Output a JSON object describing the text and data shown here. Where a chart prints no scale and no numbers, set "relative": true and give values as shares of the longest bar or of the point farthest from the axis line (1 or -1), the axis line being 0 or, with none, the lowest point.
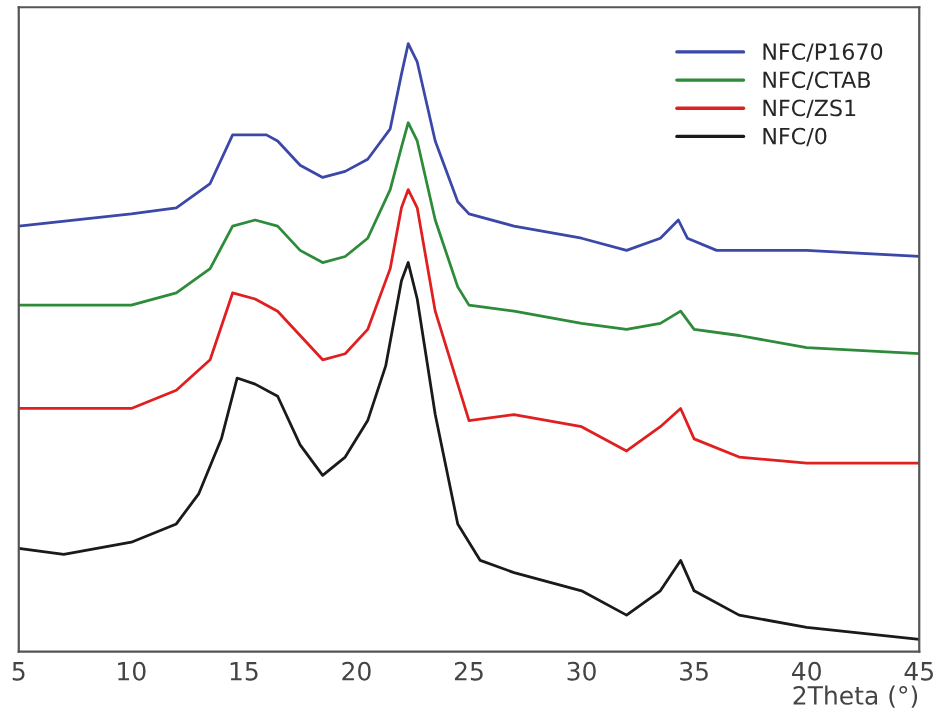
{
  "chart_data": {
    "type": "line",
    "relative": true,
    "xlabel": "2Theta (°)",
    "xlim": [
      5,
      45
    ],
    "xticks": [
      5,
      10,
      15,
      20,
      25,
      30,
      35,
      40,
      45
    ],
    "tick_labels": "x",
    "legend": "top right",
    "grid": false,
    "marker": "none",
    "line_style": "solid",
    "series": [
      {
        "name": "NFC/P1670",
        "color": "#3b48a8",
        "x": [
          5,
          10,
          12,
          13.5,
          14.5,
          15,
          16,
          16.5,
          17.5,
          18.5,
          19.5,
          20.5,
          21.5,
          22,
          22.3,
          22.7,
          23.5,
          24.5,
          25,
          27,
          30,
          32,
          33.5,
          34.3,
          34.7,
          36,
          40,
          45
        ],
        "values": [
          0.7,
          0.72,
          0.73,
          0.77,
          0.85,
          0.85,
          0.85,
          0.84,
          0.8,
          0.78,
          0.79,
          0.81,
          0.86,
          0.95,
          1.0,
          0.97,
          0.84,
          0.74,
          0.72,
          0.7,
          0.68,
          0.66,
          0.68,
          0.71,
          0.68,
          0.66,
          0.66,
          0.65
        ]
      },
      {
        "name": "NFC/CTAB",
        "color": "#2e8b3a",
        "x": [
          5,
          10,
          12,
          13.5,
          14.5,
          15.5,
          16.5,
          17.5,
          18.5,
          19.5,
          20.5,
          21.5,
          22,
          22.3,
          22.7,
          23.5,
          24.5,
          25,
          27,
          30,
          32,
          33.5,
          34.4,
          35,
          37,
          40,
          45
        ],
        "values": [
          0.57,
          0.57,
          0.59,
          0.63,
          0.7,
          0.71,
          0.7,
          0.66,
          0.64,
          0.65,
          0.68,
          0.76,
          0.83,
          0.87,
          0.84,
          0.71,
          0.6,
          0.57,
          0.56,
          0.54,
          0.53,
          0.54,
          0.56,
          0.53,
          0.52,
          0.5,
          0.49
        ]
      },
      {
        "name": "NFC/ZS1",
        "color": "#e02020",
        "x": [
          5,
          10,
          12,
          13.5,
          14.5,
          15.5,
          16.5,
          17.5,
          18.5,
          19.5,
          20.5,
          21.5,
          22,
          22.3,
          22.7,
          23.5,
          24.5,
          25,
          27,
          30,
          32,
          33.5,
          34.4,
          35,
          37,
          40,
          45
        ],
        "values": [
          0.4,
          0.4,
          0.43,
          0.48,
          0.59,
          0.58,
          0.56,
          0.52,
          0.48,
          0.49,
          0.53,
          0.63,
          0.73,
          0.76,
          0.73,
          0.56,
          0.44,
          0.38,
          0.39,
          0.37,
          0.33,
          0.37,
          0.4,
          0.35,
          0.32,
          0.31,
          0.31
        ]
      },
      {
        "name": "NFC/0",
        "color": "#1a1a1a",
        "x": [
          5,
          7,
          10,
          12,
          13,
          14,
          14.7,
          15.5,
          16.5,
          17.5,
          18.5,
          19.5,
          20.5,
          21.3,
          22,
          22.3,
          22.7,
          23.5,
          24.5,
          25.5,
          27,
          30,
          32,
          33.5,
          34.4,
          35,
          37,
          40,
          45
        ],
        "values": [
          0.17,
          0.16,
          0.18,
          0.21,
          0.26,
          0.35,
          0.45,
          0.44,
          0.42,
          0.34,
          0.29,
          0.32,
          0.38,
          0.47,
          0.61,
          0.64,
          0.58,
          0.39,
          0.21,
          0.15,
          0.13,
          0.1,
          0.06,
          0.1,
          0.15,
          0.1,
          0.06,
          0.04,
          0.02
        ]
      }
    ]
  }
}
